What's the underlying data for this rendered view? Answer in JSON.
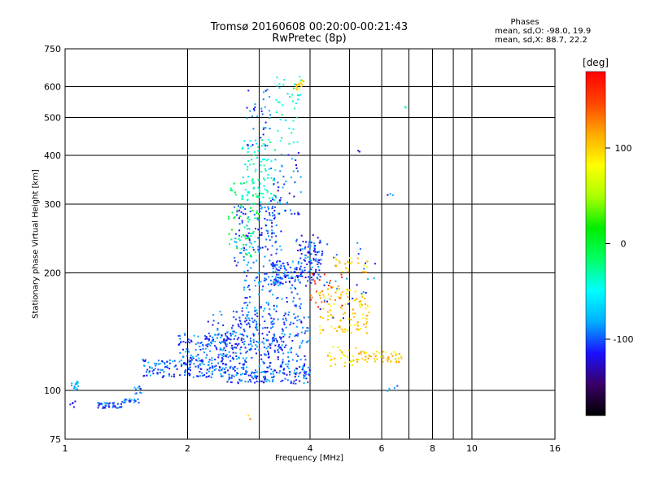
{
  "chart_data": {
    "type": "scatter",
    "title": "Tromsø 20160608 00:20:00-00:21:43",
    "subtitle": "RwPretec (8p)",
    "xlabel": "Frequency [MHz]",
    "ylabel": "Stationary phase Virtual Height [km]",
    "x_scale": "log",
    "y_scale": "log",
    "xlim": [
      1,
      16
    ],
    "ylim": [
      75,
      750
    ],
    "x_ticks": [
      1,
      2,
      4,
      6,
      8,
      10,
      16
    ],
    "x_minor_ticks": [
      3,
      5,
      7,
      9
    ],
    "y_ticks": [
      75,
      100,
      200,
      300,
      400,
      500,
      600,
      750
    ],
    "grid": true,
    "stats_header": "Phases",
    "stats_lines": [
      "mean, sd,O:  -98.0, 19.9",
      "mean, sd,X:   88.7, 22.2"
    ],
    "colorbar": {
      "label": "[deg]",
      "range": [
        -180,
        180
      ],
      "ticks": [
        -100,
        0,
        100
      ],
      "palette": [
        "#000000",
        "#3a0066",
        "#1a10ff",
        "#00b0ff",
        "#00ffff",
        "#00ff66",
        "#00ee00",
        "#aaff00",
        "#ffff00",
        "#ffaa00",
        "#ff4400",
        "#ff0000"
      ]
    },
    "clusters": [
      {
        "freq_range": [
          1.02,
          1.08
        ],
        "height_range": [
          100,
          106
        ],
        "phase": -90,
        "count": 14
      },
      {
        "freq_range": [
          1.02,
          1.06
        ],
        "height_range": [
          90,
          94
        ],
        "phase": -100,
        "count": 5
      },
      {
        "freq_range": [
          1.2,
          1.38
        ],
        "height_range": [
          90,
          93
        ],
        "phase": -100,
        "count": 40
      },
      {
        "freq_range": [
          1.38,
          1.52
        ],
        "height_range": [
          93,
          95
        ],
        "phase": -100,
        "count": 20
      },
      {
        "freq_range": [
          1.48,
          1.55
        ],
        "height_range": [
          98,
          103
        ],
        "phase": -100,
        "count": 10
      },
      {
        "freq_range": [
          1.55,
          2.5
        ],
        "height_range": [
          108,
          120
        ],
        "phase": -100,
        "count": 170
      },
      {
        "freq_range": [
          1.9,
          2.8
        ],
        "height_range": [
          120,
          140
        ],
        "phase": -100,
        "count": 120
      },
      {
        "freq_range": [
          2.2,
          3.0
        ],
        "height_range": [
          130,
          160
        ],
        "phase": -100,
        "count": 70
      },
      {
        "freq_range": [
          2.5,
          4.0
        ],
        "height_range": [
          104,
          116
        ],
        "phase": -100,
        "count": 170
      },
      {
        "freq_range": [
          2.4,
          3.9
        ],
        "height_range": [
          116,
          130
        ],
        "phase": -100,
        "count": 100
      },
      {
        "freq_range": [
          2.6,
          4.0
        ],
        "height_range": [
          130,
          160
        ],
        "phase": -100,
        "count": 150
      },
      {
        "freq_range": [
          2.7,
          3.8
        ],
        "height_range": [
          160,
          200
        ],
        "phase": -100,
        "count": 100
      },
      {
        "freq_range": [
          3.2,
          4.2
        ],
        "height_range": [
          185,
          215
        ],
        "phase": -100,
        "count": 110
      },
      {
        "freq_range": [
          3.7,
          4.3
        ],
        "height_range": [
          210,
          250
        ],
        "phase": -100,
        "count": 70
      },
      {
        "freq_range": [
          2.6,
          3.4
        ],
        "height_range": [
          200,
          300
        ],
        "phase": -100,
        "count": 140
      },
      {
        "freq_range": [
          2.5,
          3.0
        ],
        "height_range": [
          220,
          340
        ],
        "phase": -10,
        "count": 60
      },
      {
        "freq_range": [
          2.7,
          3.3
        ],
        "height_range": [
          300,
          440
        ],
        "phase": -40,
        "count": 100
      },
      {
        "freq_range": [
          2.8,
          3.2
        ],
        "height_range": [
          420,
          600
        ],
        "phase": -100,
        "count": 35
      },
      {
        "freq_range": [
          3.2,
          3.8
        ],
        "height_range": [
          280,
          420
        ],
        "phase": -100,
        "count": 50
      },
      {
        "freq_range": [
          3.3,
          3.8
        ],
        "height_range": [
          420,
          640
        ],
        "phase": -40,
        "count": 40
      },
      {
        "freq_range": [
          3.7,
          3.9
        ],
        "height_range": [
          590,
          625
        ],
        "phase": 110,
        "count": 15
      },
      {
        "freq_range": [
          4.2,
          5.6
        ],
        "height_range": [
          140,
          185
        ],
        "phase": 100,
        "count": 110
      },
      {
        "freq_range": [
          4.6,
          5.6
        ],
        "height_range": [
          200,
          220
        ],
        "phase": 100,
        "count": 25
      },
      {
        "freq_range": [
          4.0,
          4.8
        ],
        "height_range": [
          160,
          200
        ],
        "phase": 150,
        "count": 25
      },
      {
        "freq_range": [
          5.2,
          6.8
        ],
        "height_range": [
          118,
          126
        ],
        "phase": 100,
        "count": 55
      },
      {
        "freq_range": [
          4.4,
          5.2
        ],
        "height_range": [
          115,
          130
        ],
        "phase": 90,
        "count": 30
      },
      {
        "freq_range": [
          4.2,
          5.8
        ],
        "height_range": [
          150,
          250
        ],
        "phase": -100,
        "count": 30
      },
      {
        "freq_range": [
          6.2,
          6.6
        ],
        "height_range": [
          98,
          103
        ],
        "phase": -100,
        "count": 4
      },
      {
        "freq_range": [
          6.2,
          6.4
        ],
        "height_range": [
          310,
          330
        ],
        "phase": -100,
        "count": 3
      },
      {
        "freq_range": [
          6.8,
          7.0
        ],
        "height_range": [
          525,
          535
        ],
        "phase": -10,
        "count": 2
      },
      {
        "freq_range": [
          5.2,
          5.3
        ],
        "height_range": [
          405,
          412
        ],
        "phase": -100,
        "count": 2
      },
      {
        "freq_range": [
          2.8,
          3.0
        ],
        "height_range": [
          80,
          90
        ],
        "phase": 110,
        "count": 2
      }
    ]
  }
}
